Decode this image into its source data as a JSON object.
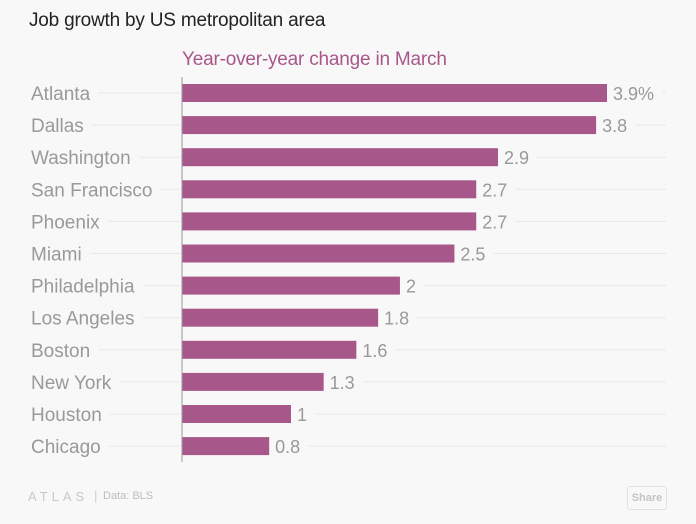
{
  "chart_data": {
    "type": "bar",
    "orientation": "horizontal",
    "title": "Job growth by US metropolitan area",
    "subtitle": "Year-over-year change in March",
    "xlabel": "",
    "ylabel": "",
    "categories": [
      "Atlanta",
      "Dallas",
      "Washington",
      "San Francisco",
      "Phoenix",
      "Miami",
      "Philadelphia",
      "Los Angeles",
      "Boston",
      "New York",
      "Houston",
      "Chicago"
    ],
    "values": [
      3.9,
      3.8,
      2.9,
      2.7,
      2.7,
      2.5,
      2,
      1.8,
      1.6,
      1.3,
      1,
      0.8
    ],
    "value_labels": [
      "3.9%",
      "3.8",
      "2.9",
      "2.7",
      "2.7",
      "2.5",
      "2",
      "1.8",
      "1.6",
      "1.3",
      "1",
      "0.8"
    ],
    "xlim": [
      0,
      3.9
    ],
    "grid": true,
    "bar_color": "#a8578a"
  },
  "footer": {
    "brand": "ATLAS",
    "separator": "|",
    "source": "Data: BLS",
    "share_label": "Share"
  }
}
